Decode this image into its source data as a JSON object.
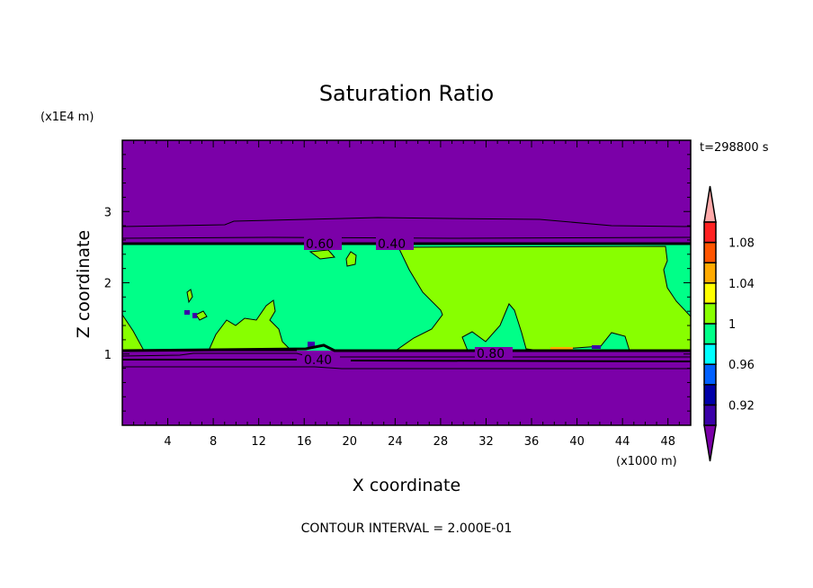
{
  "chart_data": {
    "type": "heatmap",
    "subtype": "filled-contour",
    "title": "Saturation Ratio",
    "xlabel": "X coordinate",
    "ylabel": "Z coordinate",
    "x_unit": "(x1000 m)",
    "y_unit": "(x1E4 m)",
    "time_label": "t=298800 s",
    "footer": "CONTOUR INTERVAL = 2.000E-01",
    "xlim": [
      0,
      50
    ],
    "ylim": [
      0,
      4
    ],
    "xticks": [
      4,
      8,
      12,
      16,
      20,
      24,
      28,
      32,
      36,
      40,
      44,
      48
    ],
    "yticks": [
      1,
      2,
      3
    ],
    "contour_labels": [
      {
        "text": "0.60",
        "x": 17.5,
        "z": 2.55
      },
      {
        "text": "0.40",
        "x": 17.5,
        "z": 2.55
      },
      {
        "text": "0.40",
        "x": 17.5,
        "z": 0.92
      },
      {
        "text": "0.80",
        "x": 32.5,
        "z": 1.0
      }
    ],
    "colorbar": {
      "levels": [
        0.9,
        0.92,
        0.94,
        0.96,
        0.98,
        1.0,
        1.02,
        1.04,
        1.06,
        1.08,
        1.1
      ],
      "tick_labels": [
        {
          "value": 1.08,
          "text": "1.08"
        },
        {
          "value": 1.04,
          "text": "1.04"
        },
        {
          "value": 1.0,
          "text": "1"
        },
        {
          "value": 0.96,
          "text": "0.96"
        },
        {
          "value": 0.92,
          "text": "0.92"
        }
      ],
      "colors": [
        "#3a00a8",
        "#0000a8",
        "#0060ff",
        "#00ffff",
        "#00ff88",
        "#88ff00",
        "#ffff00",
        "#ffaa00",
        "#ff5500",
        "#ff2222"
      ],
      "under_color": "#7b00a8",
      "over_color": "#ffaaaa"
    },
    "regions": {
      "upper_dry_layer": {
        "z_range": [
          2.55,
          4.0
        ],
        "value": "<0.90"
      },
      "moist_layer": {
        "z_range": [
          1.05,
          2.55
        ],
        "value": "0.98-1.02"
      },
      "lower_dry_layer": {
        "z_range": [
          0,
          1.05
        ],
        "value": "<0.90"
      }
    }
  }
}
